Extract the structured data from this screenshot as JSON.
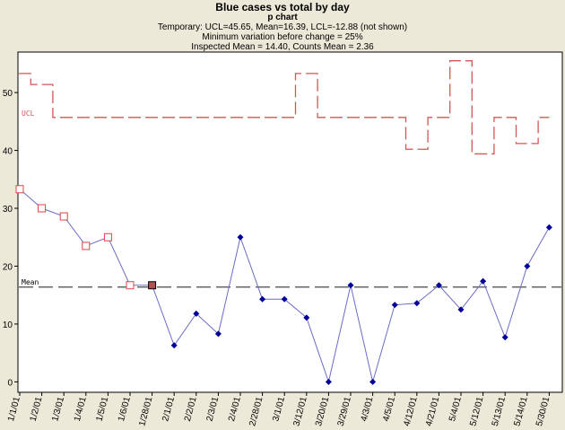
{
  "chart_data": {
    "type": "line",
    "title": "Blue cases vs total by day",
    "subtitle": "p chart",
    "info_lines": [
      "Temporary: UCL=45.65, Mean=16.39, LCL=-12.88 (not shown)",
      "Minimum variation before change = 25%",
      "Inspected Mean = 14.40, Counts Mean = 2.36"
    ],
    "xlabel": "",
    "ylabel": "",
    "categories": [
      "1/1/01",
      "1/2/01",
      "1/3/01",
      "1/4/01",
      "1/5/01",
      "1/6/01",
      "1/28/01",
      "2/1/01",
      "2/2/01",
      "2/3/01",
      "2/4/01",
      "2/28/01",
      "3/1/01",
      "3/12/01",
      "3/20/01",
      "3/29/01",
      "4/3/01",
      "4/5/01",
      "4/12/01",
      "4/21/01",
      "5/4/01",
      "5/12/01",
      "5/13/01",
      "5/14/01",
      "5/30/01"
    ],
    "ylim": [
      -1.8,
      57
    ],
    "yticks": [
      0,
      10,
      20,
      30,
      40,
      50
    ],
    "series": [
      {
        "values": [
          33.3,
          30.0,
          28.6,
          23.5,
          25.0,
          16.7,
          16.7,
          6.3,
          11.8,
          8.3,
          25.0,
          14.3,
          14.3,
          11.1,
          0.0,
          16.7,
          0.0,
          13.3,
          13.6,
          16.7,
          12.5,
          17.4,
          7.7,
          20.0,
          26.7
        ],
        "marker_types": [
          "open-square",
          "open-square",
          "open-square",
          "open-square",
          "open-square",
          "open-square",
          "filled-square",
          "diamond",
          "diamond",
          "diamond",
          "diamond",
          "diamond",
          "diamond",
          "diamond",
          "diamond",
          "diamond",
          "diamond",
          "diamond",
          "diamond",
          "diamond",
          "diamond",
          "diamond",
          "diamond",
          "diamond",
          "diamond"
        ]
      }
    ],
    "ucl": {
      "label": "UCL",
      "values": [
        53.3,
        51.4,
        45.7,
        45.7,
        45.7,
        45.7,
        45.7,
        45.7,
        45.7,
        45.7,
        45.7,
        45.7,
        45.7,
        53.3,
        45.7,
        45.7,
        45.7,
        45.7,
        40.2,
        45.7,
        55.5,
        39.4,
        45.7,
        41.2,
        45.7
      ]
    },
    "mean": {
      "label": "Mean",
      "value": 16.39
    },
    "grid": false,
    "colors": {
      "background": "#ece9d8",
      "plot_background": "#ffffff",
      "line": "#6b6bc6",
      "open_marker": "#dd4444",
      "filled_marker": "#b05252",
      "diamond": "#000099",
      "ucl": "#d55555",
      "mean": "#666666"
    }
  }
}
